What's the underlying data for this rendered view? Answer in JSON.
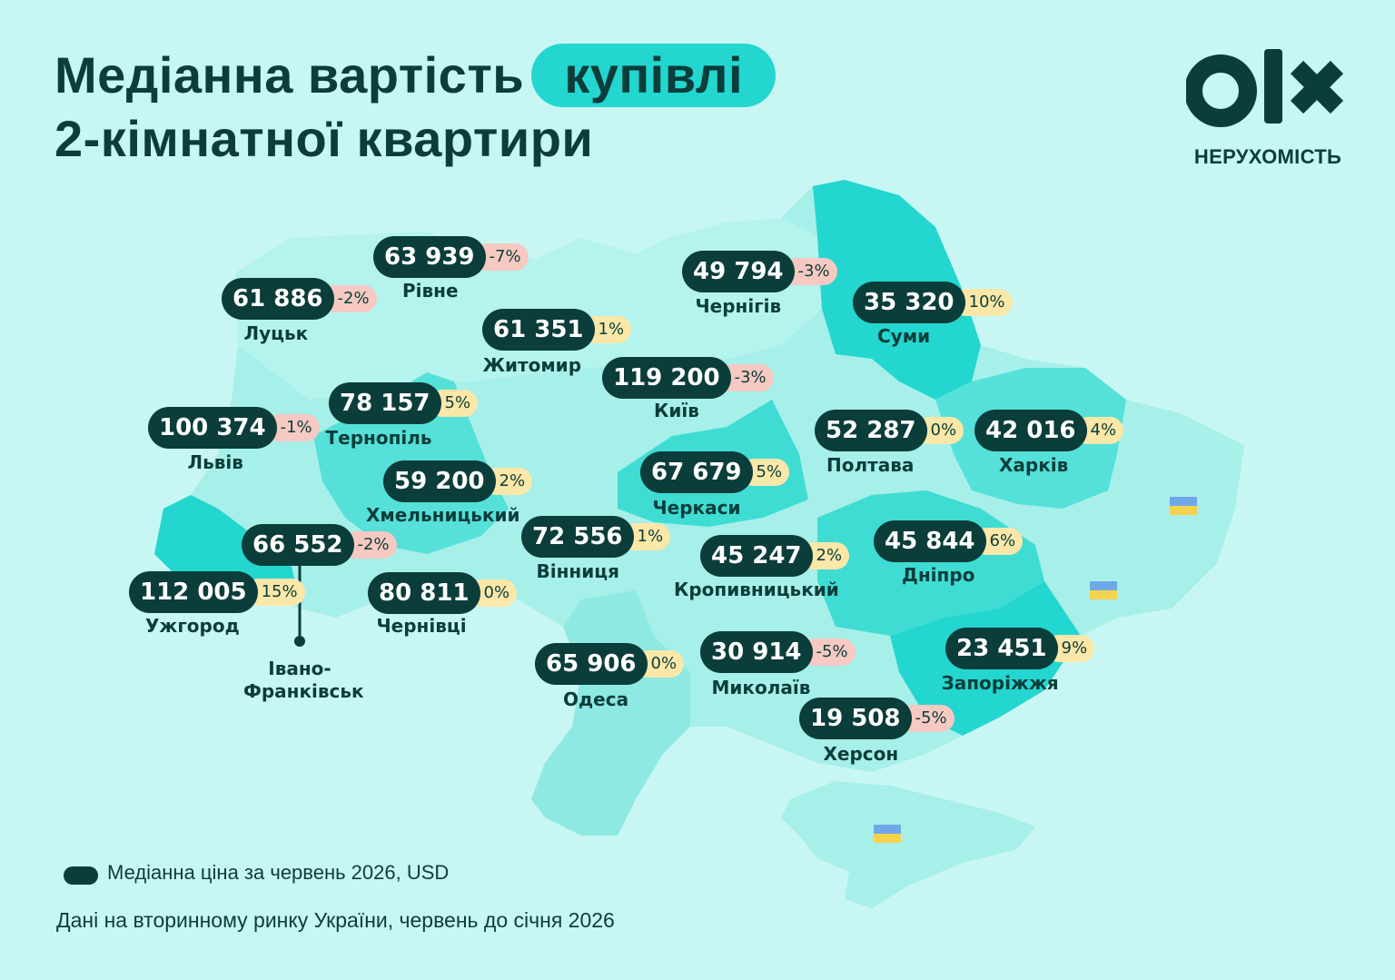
{
  "title": {
    "line1_part1": "Медіанна вартість",
    "line1_highlight": "купівлі",
    "line2": "2-кімнатної квартири"
  },
  "brand": {
    "logo_text": "olx",
    "subtitle": "НЕРУХОМІСТЬ"
  },
  "colors": {
    "background": "#c8f7f3",
    "dark": "#0b3d3a",
    "accent": "#23d6cf",
    "negative_badge": "#f6c9c2",
    "positive_badge": "#fbe7a8"
  },
  "cities": [
    {
      "name": "Луцьк",
      "price": "61 886",
      "change": "-2%"
    },
    {
      "name": "Рівне",
      "price": "63 939",
      "change": "-7%"
    },
    {
      "name": "Житомир",
      "price": "61 351",
      "change": "1%"
    },
    {
      "name": "Чернігів",
      "price": "49 794",
      "change": "-3%"
    },
    {
      "name": "Суми",
      "price": "35 320",
      "change": "10%"
    },
    {
      "name": "Київ",
      "price": "119 200",
      "change": "-3%"
    },
    {
      "name": "Тернопіль",
      "price": "78 157",
      "change": "5%"
    },
    {
      "name": "Львів",
      "price": "100 374",
      "change": "-1%"
    },
    {
      "name": "Полтава",
      "price": "52 287",
      "change": "0%"
    },
    {
      "name": "Харків",
      "price": "42 016",
      "change": "4%"
    },
    {
      "name": "Хмельницький",
      "price": "59 200",
      "change": "2%"
    },
    {
      "name": "Черкаси",
      "price": "67 679",
      "change": "5%"
    },
    {
      "name": "Івано-Франківськ",
      "price": "66 552",
      "change": "-2%"
    },
    {
      "name": "Вінниця",
      "price": "72 556",
      "change": "1%"
    },
    {
      "name": "Кропивницький",
      "price": "45 247",
      "change": "2%"
    },
    {
      "name": "Дніпро",
      "price": "45 844",
      "change": "6%"
    },
    {
      "name": "Ужгород",
      "price": "112 005",
      "change": "15%"
    },
    {
      "name": "Чернівці",
      "price": "80 811",
      "change": "0%"
    },
    {
      "name": "Миколаїв",
      "price": "30 914",
      "change": "-5%"
    },
    {
      "name": "Запоріжжя",
      "price": "23 451",
      "change": "9%"
    },
    {
      "name": "Одеса",
      "price": "65 906",
      "change": "0%"
    },
    {
      "name": "Херсон",
      "price": "19 508",
      "change": "-5%"
    }
  ],
  "ivano_label": {
    "line1": "Івано-",
    "line2": "Франківськ"
  },
  "legend": {
    "label": "Медіанна ціна за червень 2026, USD"
  },
  "footnote": "Дані на вторинному ринку України, червень до січня 2026"
}
